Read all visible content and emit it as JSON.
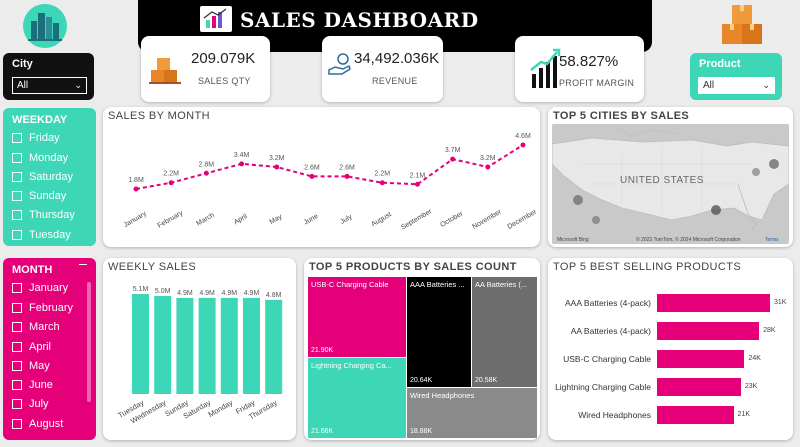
{
  "header": {
    "title": "SALES DASHBOARD"
  },
  "kpis": [
    {
      "value": "209.079K",
      "label": "SALES QTY",
      "icon": "boxes-icon"
    },
    {
      "value": "34,492.036K",
      "label": "REVENUE",
      "icon": "hand-coin-icon"
    },
    {
      "value": "58.827%",
      "label": "PROFIT MARGIN",
      "icon": "growth-chart-icon"
    }
  ],
  "slicers": {
    "city": {
      "label": "City",
      "value": "All"
    },
    "product": {
      "label": "Product",
      "value": "All"
    },
    "weekday": {
      "label": "WEEKDAY",
      "items": [
        "Friday",
        "Monday",
        "Saturday",
        "Sunday",
        "Thursday",
        "Tuesday"
      ]
    },
    "month": {
      "label": "MONTH",
      "items": [
        "January",
        "February",
        "March",
        "April",
        "May",
        "June",
        "July",
        "August"
      ]
    }
  },
  "sales_by_month": {
    "title": "SALES BY MONTH"
  },
  "weekly_sales": {
    "title": "WEEKLY SALES"
  },
  "top_cities": {
    "title": "TOP 5 CITIES BY SALES",
    "map_label": "UNITED STATES",
    "attribution_left": "Microsoft Bing",
    "attribution_right": "© 2023 TomTom, © 2024 Microsoft Corporation",
    "terms": "Terms"
  },
  "top_products_count": {
    "title": "TOP 5 PRODUCTS BY SALES COUNT",
    "cells": [
      {
        "name": "USB-C Charging Cable",
        "value": "21.90K",
        "color": "#e5007a"
      },
      {
        "name": "Lightning Charging Ca...",
        "value": "21.66K",
        "color": "#3dd6b6"
      },
      {
        "name": "AAA Batteries ...",
        "value": "20.64K",
        "color": "#000000"
      },
      {
        "name": "AA Batteries (...",
        "value": "20.58K",
        "color": "#6d6d6d"
      },
      {
        "name": "Wired Headphones",
        "value": "18.88K",
        "color": "#8a8a8a"
      }
    ]
  },
  "best_selling": {
    "title": "TOP 5 BEST SELLING PRODUCTS"
  },
  "colors": {
    "pink": "#e5007a",
    "teal": "#3dd6b6",
    "dark": "#111111"
  },
  "chart_data": [
    {
      "type": "line",
      "title": "SALES BY MONTH",
      "categories": [
        "January",
        "February",
        "March",
        "April",
        "May",
        "June",
        "July",
        "August",
        "September",
        "October",
        "November",
        "December"
      ],
      "values": [
        1.8,
        2.2,
        2.8,
        3.4,
        3.2,
        2.6,
        2.6,
        2.2,
        2.1,
        3.7,
        3.2,
        4.6
      ],
      "data_labels": [
        "1.8M",
        "2.2M",
        "2.8M",
        "3.4M",
        "3.2M",
        "2.6M",
        "2.6M",
        "2.2M",
        "2.1M",
        "3.7M",
        "3.2M",
        "4.6M"
      ],
      "color": "#e5007a"
    },
    {
      "type": "bar",
      "title": "WEEKLY SALES",
      "categories": [
        "Tuesday",
        "Wednesday",
        "Sunday",
        "Saturday",
        "Monday",
        "Friday",
        "Thursday"
      ],
      "values": [
        5.1,
        5.0,
        4.9,
        4.9,
        4.9,
        4.9,
        4.8
      ],
      "data_labels": [
        "5.1M",
        "5.0M",
        "4.9M",
        "4.9M",
        "4.9M",
        "4.9M",
        "4.8M"
      ],
      "color": "#3dd6b6"
    },
    {
      "type": "bar",
      "orientation": "horizontal",
      "title": "TOP 5 BEST SELLING PRODUCTS",
      "categories": [
        "AAA Batteries (4-pack)",
        "AA Batteries (4-pack)",
        "USB-C Charging Cable",
        "Lightning Charging Cable",
        "Wired Headphones"
      ],
      "values": [
        31,
        28,
        24,
        23,
        21
      ],
      "data_labels": [
        "31K",
        "28K",
        "24K",
        "23K",
        "21K"
      ],
      "color": "#e5007a"
    }
  ]
}
